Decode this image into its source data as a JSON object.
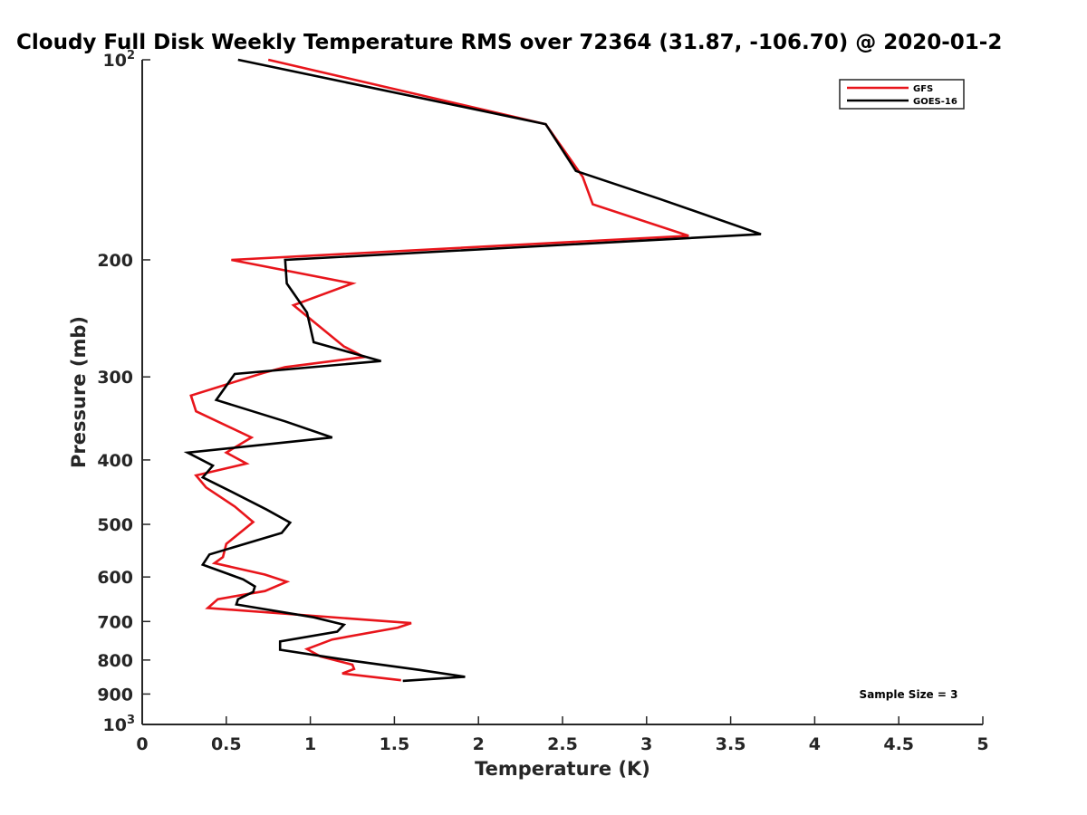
{
  "chart_data": {
    "type": "line",
    "title": "Cloudy Full Disk Weekly Temperature RMS over 72364 (31.87, -106.70) @ 2020-01-2",
    "xlabel": "Temperature (K)",
    "ylabel": "Pressure (mb)",
    "xlim": [
      0,
      5
    ],
    "ylim": [
      100,
      1000
    ],
    "y_scale": "log",
    "y_reversed": true,
    "grid": false,
    "legend_position": "top-right",
    "x_ticks": [
      "0",
      "0.5",
      "1",
      "1.5",
      "2",
      "2.5",
      "3",
      "3.5",
      "4",
      "4.5",
      "5"
    ],
    "x_tick_values": [
      0,
      0.5,
      1,
      1.5,
      2,
      2.5,
      3,
      3.5,
      4,
      4.5,
      5
    ],
    "y_ticks": [
      {
        "value": 100,
        "base": "10",
        "exp": "2"
      },
      {
        "value": 200,
        "label": "200"
      },
      {
        "value": 300,
        "label": "300"
      },
      {
        "value": 400,
        "label": "400"
      },
      {
        "value": 500,
        "label": "500"
      },
      {
        "value": 600,
        "label": "600"
      },
      {
        "value": 700,
        "label": "700"
      },
      {
        "value": 800,
        "label": "800"
      },
      {
        "value": 900,
        "label": "900"
      },
      {
        "value": 1000,
        "base": "10",
        "exp": "3"
      }
    ],
    "annotation": "Sample Size = 3",
    "series": [
      {
        "name": "GFS",
        "color": "#e8151b",
        "points": [
          [
            0.75,
            100
          ],
          [
            2.4,
            125
          ],
          [
            2.62,
            150
          ],
          [
            2.68,
            165
          ],
          [
            3.25,
            184
          ],
          [
            0.53,
            200
          ],
          [
            1.25,
            217
          ],
          [
            0.9,
            234
          ],
          [
            1.2,
            270
          ],
          [
            1.32,
            280
          ],
          [
            0.85,
            290
          ],
          [
            0.72,
            296
          ],
          [
            0.29,
            320
          ],
          [
            0.32,
            338
          ],
          [
            0.65,
            370
          ],
          [
            0.5,
            390
          ],
          [
            0.62,
            405
          ],
          [
            0.32,
            422
          ],
          [
            0.38,
            440
          ],
          [
            0.55,
            470
          ],
          [
            0.66,
            496
          ],
          [
            0.5,
            535
          ],
          [
            0.48,
            560
          ],
          [
            0.43,
            572
          ],
          [
            0.73,
            595
          ],
          [
            0.86,
            610
          ],
          [
            0.73,
            630
          ],
          [
            0.45,
            648
          ],
          [
            0.39,
            668
          ],
          [
            1.6,
            704
          ],
          [
            1.52,
            715
          ],
          [
            1.13,
            745
          ],
          [
            0.98,
            770
          ],
          [
            1.06,
            790
          ],
          [
            1.25,
            813
          ],
          [
            1.26,
            825
          ],
          [
            1.19,
            838
          ],
          [
            1.54,
            858
          ]
        ]
      },
      {
        "name": "GOES-16",
        "color": "#000000",
        "points": [
          [
            0.57,
            100
          ],
          [
            2.4,
            125
          ],
          [
            2.58,
            147
          ],
          [
            3.08,
            162
          ],
          [
            3.68,
            183
          ],
          [
            0.85,
            200
          ],
          [
            0.86,
            217
          ],
          [
            0.98,
            240
          ],
          [
            1.02,
            266
          ],
          [
            1.42,
            284
          ],
          [
            0.55,
            297
          ],
          [
            0.44,
            325
          ],
          [
            0.85,
            350
          ],
          [
            1.13,
            370
          ],
          [
            0.27,
            390
          ],
          [
            0.42,
            408
          ],
          [
            0.36,
            425
          ],
          [
            0.52,
            445
          ],
          [
            0.74,
            475
          ],
          [
            0.88,
            497
          ],
          [
            0.83,
            515
          ],
          [
            0.4,
            555
          ],
          [
            0.36,
            575
          ],
          [
            0.6,
            605
          ],
          [
            0.67,
            620
          ],
          [
            0.66,
            632
          ],
          [
            0.57,
            648
          ],
          [
            0.56,
            660
          ],
          [
            1.02,
            690
          ],
          [
            1.2,
            708
          ],
          [
            1.16,
            725
          ],
          [
            0.82,
            750
          ],
          [
            0.82,
            772
          ],
          [
            1.25,
            802
          ],
          [
            1.65,
            828
          ],
          [
            1.92,
            848
          ],
          [
            1.55,
            860
          ]
        ]
      }
    ]
  }
}
